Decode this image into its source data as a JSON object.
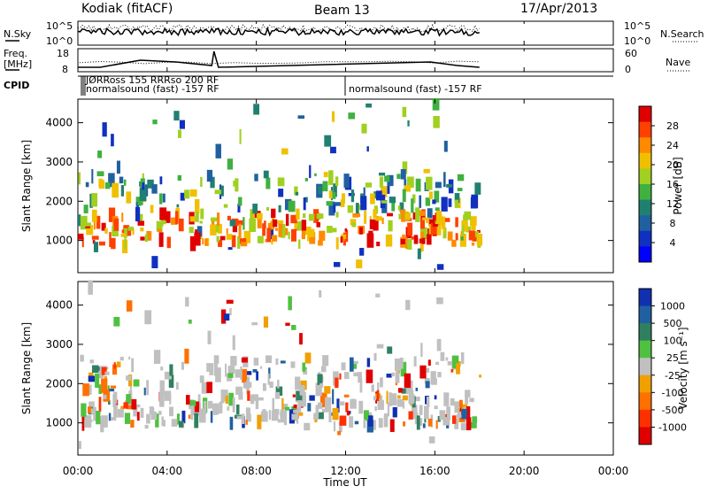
{
  "header": {
    "station": "Kodiak (fitACF)",
    "beam": "Beam 13",
    "date": "17/Apr/2013"
  },
  "panels": {
    "nsky_label": "N.Sky",
    "nsearch_label": "N.Search",
    "noise_ticks": [
      "10^5",
      "10^0"
    ],
    "freq_label_line1": "Freq.",
    "freq_label_line2": "[MHz]",
    "freq_ticks": [
      "18",
      "8"
    ],
    "nave_label": "Nave",
    "nave_ticks": [
      "60",
      "0"
    ],
    "cpid_label": "CPID",
    "cpid_left_text": "normalsound (fast) -157 RF",
    "cpid_left_overlap": "JØRRoss 155 RRRso 200 RF",
    "cpid_right_text": "normalsound (fast) -157 RF"
  },
  "chart_data": [
    {
      "type": "heatmap",
      "name": "power",
      "ylabel": "Slant Range [km]",
      "yticks": [
        1000,
        2000,
        3000,
        4000
      ],
      "ylim": [
        180,
        4600
      ],
      "xlim": [
        0,
        24
      ],
      "colorbar_label": "Power [dB]",
      "colorbar_ticks": [
        "28",
        "24",
        "20",
        "16",
        "12",
        "8",
        "4"
      ],
      "colorbar_colors": [
        "#e00000",
        "#ff4000",
        "#ff8a00",
        "#f0c000",
        "#a0d020",
        "#40b040",
        "#208070",
        "#2060a0",
        "#1030c0",
        "#0000ff"
      ]
    },
    {
      "type": "heatmap",
      "name": "velocity",
      "ylabel": "Slant Range [km]",
      "yticks": [
        1000,
        2000,
        3000,
        4000
      ],
      "ylim": [
        180,
        4600
      ],
      "xlim": [
        0,
        24
      ],
      "colorbar_label": "Velocity [m s⁻¹]",
      "colorbar_ticks": [
        "1000",
        "500",
        "100",
        "25",
        "-25",
        "-100",
        "-500",
        "-1000"
      ],
      "colorbar_colors": [
        "#1030b0",
        "#2060a0",
        "#308060",
        "#50c040",
        "#c0c0c0",
        "#f0a000",
        "#ff7000",
        "#ff3000",
        "#e00000"
      ]
    }
  ],
  "xaxis": {
    "ticks": [
      "00:00",
      "04:00",
      "08:00",
      "12:00",
      "16:00",
      "20:00",
      "00:00"
    ],
    "label": "Time UT"
  },
  "colors": {
    "ground_scatter": "#c0c0c0"
  }
}
